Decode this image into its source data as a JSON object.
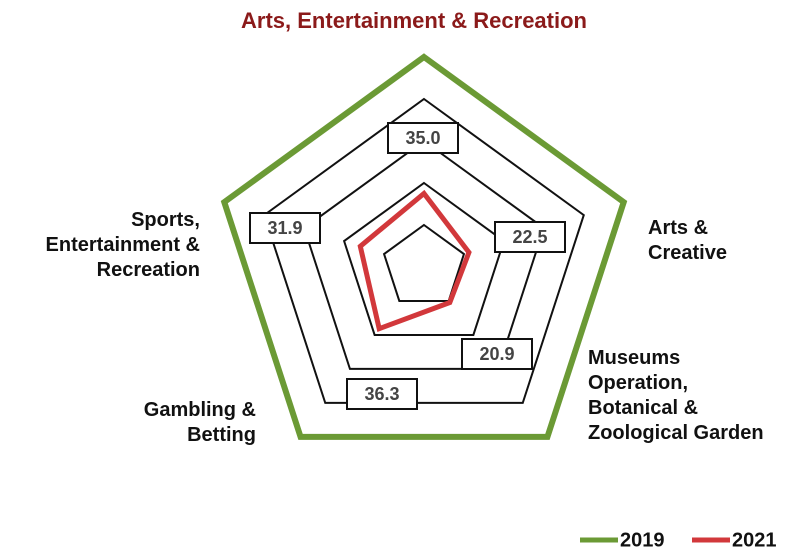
{
  "chart_data": {
    "type": "radar",
    "title": "Arts, Entertainment & Recreation",
    "categories": [
      null,
      "Arts &\nCreative",
      "Museums\nOperation,\nBotanical &\nZoological Garden",
      "Gambling &\nBetting",
      "Sports,\nEntertainment &\nRecreation"
    ],
    "series": [
      {
        "name": "2019",
        "color": "#6b9a35",
        "values": [
          100,
          100,
          100,
          100,
          100
        ]
      },
      {
        "name": "2021",
        "color": "#d2383b",
        "values": [
          35.0,
          22.5,
          20.9,
          36.3,
          31.9
        ],
        "value_labels": [
          "35.0",
          "22.5",
          "20.9",
          "36.3",
          "31.9"
        ]
      }
    ],
    "rlim": [
      0,
      100
    ],
    "rticks": [
      20,
      40,
      60,
      80
    ],
    "grid": true,
    "legend": "bottom-right"
  }
}
